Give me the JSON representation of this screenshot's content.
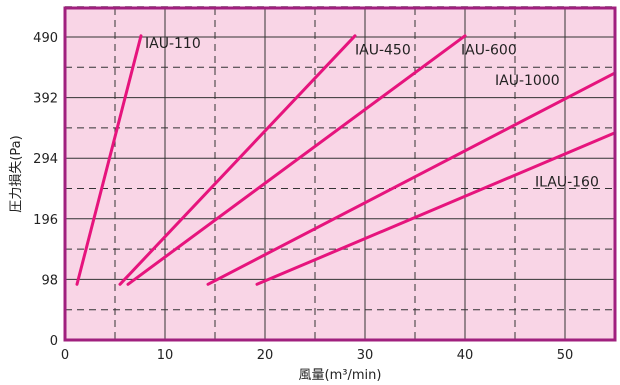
{
  "chart_data": {
    "type": "line",
    "title": "",
    "xlabel": "風量(m³/min)",
    "ylabel": "圧力損失(Pa)",
    "xlim": [
      0,
      55
    ],
    "ylim": [
      0,
      490
    ],
    "x_ticks": [
      0,
      10,
      20,
      30,
      40,
      50
    ],
    "y_ticks": [
      0,
      98,
      196,
      294,
      392,
      490
    ],
    "grid": true,
    "plot_background": "#f9d5e6",
    "frame_color": "#a0207e",
    "line_color": "#e6147d",
    "series": [
      {
        "name": "IAU-110",
        "x": [
          1.2,
          7.6
        ],
        "y": [
          90,
          492
        ],
        "label_at": [
          8.0,
          472
        ]
      },
      {
        "name": "IAU-450",
        "x": [
          5.5,
          29.0
        ],
        "y": [
          90,
          492
        ],
        "label_at": [
          29.0,
          462
        ]
      },
      {
        "name": "IAU-600",
        "x": [
          6.3,
          40.0
        ],
        "y": [
          90,
          492
        ],
        "label_at": [
          39.6,
          462
        ]
      },
      {
        "name": "IAU-1000",
        "x": [
          14.3,
          55.0
        ],
        "y": [
          90,
          432
        ],
        "label_at": [
          43.0,
          412
        ]
      },
      {
        "name": "ILAU-160",
        "x": [
          19.2,
          55.0
        ],
        "y": [
          90,
          335
        ],
        "label_at": [
          47.0,
          248
        ]
      }
    ]
  }
}
